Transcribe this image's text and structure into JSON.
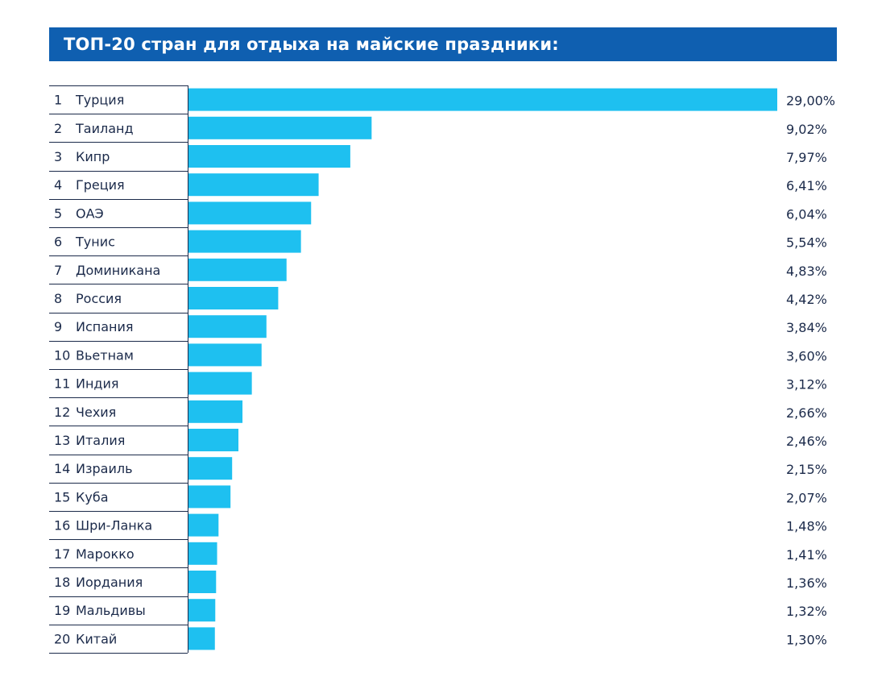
{
  "title": "ТОП-20 стран для отдыха на майские праздники:",
  "colors": {
    "title_bg": "#0f5fb0",
    "bar": "#1ec0f0",
    "text": "#1b2a4a",
    "grid_line": "#1b2a4a"
  },
  "chart_data": {
    "type": "bar",
    "orientation": "horizontal",
    "title": "ТОП-20 стран для отдыха на майские праздники:",
    "value_suffix": "%",
    "xlim": [
      0,
      29
    ],
    "rows": [
      {
        "rank": "1",
        "name": "Турция",
        "value": 29.0,
        "label": "29,00%"
      },
      {
        "rank": "2",
        "name": "Таиланд",
        "value": 9.02,
        "label": "9,02%"
      },
      {
        "rank": "3",
        "name": "Кипр",
        "value": 7.97,
        "label": "7,97%"
      },
      {
        "rank": "4",
        "name": "Греция",
        "value": 6.41,
        "label": "6,41%"
      },
      {
        "rank": "5",
        "name": "ОАЭ",
        "value": 6.04,
        "label": "6,04%"
      },
      {
        "rank": "6",
        "name": "Тунис",
        "value": 5.54,
        "label": "5,54%"
      },
      {
        "rank": "7",
        "name": "Доминикана",
        "value": 4.83,
        "label": "4,83%"
      },
      {
        "rank": "8",
        "name": "Россия",
        "value": 4.42,
        "label": "4,42%"
      },
      {
        "rank": "9",
        "name": "Испания",
        "value": 3.84,
        "label": "3,84%"
      },
      {
        "rank": "10",
        "name": "Вьетнам",
        "value": 3.6,
        "label": "3,60%"
      },
      {
        "rank": "11",
        "name": "Индия",
        "value": 3.12,
        "label": "3,12%"
      },
      {
        "rank": "12",
        "name": "Чехия",
        "value": 2.66,
        "label": "2,66%"
      },
      {
        "rank": "13",
        "name": "Италия",
        "value": 2.46,
        "label": "2,46%"
      },
      {
        "rank": "14",
        "name": "Израиль",
        "value": 2.15,
        "label": "2,15%"
      },
      {
        "rank": "15",
        "name": "Куба",
        "value": 2.07,
        "label": "2,07%"
      },
      {
        "rank": "16",
        "name": "Шри-Ланка",
        "value": 1.48,
        "label": "1,48%"
      },
      {
        "rank": "17",
        "name": "Марокко",
        "value": 1.41,
        "label": "1,41%"
      },
      {
        "rank": "18",
        "name": "Иордания",
        "value": 1.36,
        "label": "1,36%"
      },
      {
        "rank": "19",
        "name": "Мальдивы",
        "value": 1.32,
        "label": "1,32%"
      },
      {
        "rank": "20",
        "name": "Китай",
        "value": 1.3,
        "label": "1,30%"
      }
    ]
  }
}
